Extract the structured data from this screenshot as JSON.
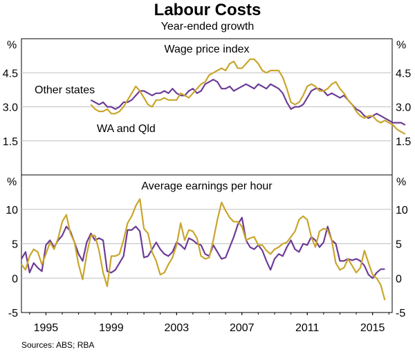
{
  "title": "Labour Costs",
  "subtitle": "Year-ended growth",
  "source": "Sources:   ABS; RBA",
  "colors": {
    "other_states": "#6c3b96",
    "wa_qld": "#c9a52b",
    "grid": "#bfbfbf",
    "axis": "#000000"
  },
  "chart_data": [
    {
      "type": "line",
      "title": "Wage price index",
      "ylabel_left": "%",
      "ylabel_right": "%",
      "ylim": [
        0,
        6
      ],
      "yticks": [
        1.5,
        3.0,
        4.5
      ],
      "ytick_labels": [
        "1.5",
        "3.0",
        "4.5"
      ],
      "xlim": [
        1993.5,
        2016.2
      ],
      "series_labels": {
        "other_states": "Other states",
        "wa_qld": "WA and Qld"
      },
      "series": [
        {
          "name": "Other states",
          "key": "other_states",
          "x_start": 1997.75,
          "step": 0.25,
          "values": [
            3.3,
            3.2,
            3.1,
            3.2,
            3.0,
            3.0,
            2.9,
            3.0,
            3.2,
            3.2,
            3.3,
            3.5,
            3.7,
            3.7,
            3.6,
            3.5,
            3.6,
            3.6,
            3.7,
            3.6,
            3.8,
            3.6,
            3.5,
            3.5,
            3.7,
            3.8,
            3.6,
            3.7,
            4.0,
            4.1,
            4.2,
            4.1,
            3.8,
            3.8,
            3.9,
            3.7,
            3.8,
            3.9,
            4.0,
            3.9,
            3.8,
            4.0,
            3.9,
            3.8,
            4.0,
            3.9,
            3.8,
            3.6,
            3.2,
            2.9,
            3.0,
            3.0,
            3.1,
            3.4,
            3.7,
            3.8,
            3.8,
            3.7,
            3.5,
            3.6,
            3.5,
            3.4,
            3.5,
            3.3,
            3.1,
            2.9,
            2.8,
            2.6,
            2.5,
            2.6,
            2.7,
            2.6,
            2.5,
            2.4,
            2.3,
            2.3,
            2.3,
            2.2
          ]
        },
        {
          "name": "WA and Qld",
          "key": "wa_qld",
          "x_start": 1997.75,
          "step": 0.25,
          "values": [
            3.1,
            2.9,
            2.8,
            2.8,
            2.9,
            2.7,
            2.7,
            2.8,
            3.0,
            3.3,
            3.6,
            3.9,
            3.7,
            3.4,
            3.1,
            3.0,
            3.3,
            3.3,
            3.4,
            3.3,
            3.3,
            3.3,
            3.6,
            3.5,
            3.4,
            3.6,
            3.8,
            4.0,
            4.1,
            4.4,
            4.5,
            4.6,
            4.7,
            4.6,
            4.9,
            5.0,
            4.7,
            4.7,
            4.9,
            5.1,
            5.1,
            4.9,
            4.6,
            4.5,
            4.6,
            4.6,
            4.6,
            4.3,
            3.8,
            3.2,
            3.1,
            3.2,
            3.5,
            3.9,
            4.0,
            3.9,
            3.7,
            3.7,
            3.8,
            4.0,
            4.1,
            3.8,
            3.6,
            3.3,
            3.1,
            2.8,
            2.6,
            2.5,
            2.6,
            2.6,
            2.4,
            2.3,
            2.4,
            2.3,
            2.2,
            2.0,
            1.9,
            1.8
          ]
        }
      ]
    },
    {
      "type": "line",
      "title": "Average earnings per hour",
      "ylabel_left": "%",
      "ylabel_right": "%",
      "ylim": [
        -5,
        15
      ],
      "yticks": [
        -5,
        0,
        5,
        10
      ],
      "ytick_labels": [
        "-5",
        "0",
        "5",
        "10"
      ],
      "xlim": [
        1993.5,
        2016.2
      ],
      "xticks": [
        1995,
        1999,
        2003,
        2007,
        2011,
        2015
      ],
      "xtick_labels": [
        "1995",
        "1999",
        "2003",
        "2007",
        "2011",
        "2015"
      ],
      "series": [
        {
          "name": "Other states",
          "key": "other_states",
          "x_start": 1993.5,
          "step": 0.25,
          "values": [
            2.8,
            3.8,
            0.8,
            2.2,
            1.5,
            1.0,
            4.8,
            5.5,
            4.5,
            5.5,
            6.2,
            7.5,
            6.8,
            5.2,
            3.5,
            2.5,
            5.2,
            6.5,
            5.5,
            5.8,
            5.5,
            1.0,
            0.8,
            1.2,
            2.2,
            3.2,
            7.0,
            7.0,
            7.5,
            6.8,
            3.0,
            3.2,
            4.2,
            5.2,
            4.2,
            3.5,
            3.2,
            3.8,
            5.2,
            4.8,
            4.2,
            5.8,
            5.5,
            5.0,
            4.8,
            3.5,
            3.2,
            4.8,
            3.8,
            2.8,
            3.0,
            4.5,
            6.0,
            7.8,
            8.8,
            5.5,
            4.5,
            4.2,
            4.8,
            4.0,
            2.5,
            1.2,
            2.8,
            3.5,
            3.2,
            4.5,
            5.5,
            4.2,
            3.8,
            5.0,
            4.8,
            6.0,
            5.5,
            4.5,
            5.2,
            7.5,
            5.5,
            5.0,
            2.5,
            2.5,
            2.8,
            2.6,
            2.8,
            2.5,
            1.8,
            0.5,
            0.0,
            0.8,
            1.3,
            1.3
          ]
        },
        {
          "name": "WA and Qld",
          "key": "wa_qld",
          "x_start": 1993.5,
          "step": 0.25,
          "values": [
            2.0,
            1.2,
            3.2,
            4.2,
            3.8,
            2.0,
            3.5,
            5.2,
            4.2,
            5.8,
            8.2,
            9.2,
            6.5,
            5.2,
            2.0,
            -0.2,
            3.5,
            6.2,
            6.2,
            4.0,
            0.8,
            -1.2,
            3.2,
            3.2,
            3.5,
            5.5,
            8.0,
            9.0,
            10.5,
            11.5,
            7.2,
            6.5,
            3.8,
            2.5,
            0.5,
            0.8,
            2.0,
            3.0,
            4.8,
            8.0,
            5.5,
            7.0,
            6.8,
            5.8,
            3.2,
            2.8,
            3.0,
            5.5,
            8.5,
            11.0,
            9.8,
            8.8,
            8.2,
            8.2,
            7.5,
            5.5,
            5.8,
            6.0,
            4.8,
            4.8,
            4.0,
            3.5,
            4.2,
            4.5,
            5.0,
            5.2,
            6.0,
            6.8,
            8.5,
            9.0,
            8.5,
            6.0,
            4.5,
            6.8,
            7.2,
            7.0,
            5.5,
            2.2,
            1.2,
            1.5,
            2.8,
            1.8,
            0.8,
            1.5,
            4.0,
            2.2,
            0.5,
            0.0,
            -1.0,
            -3.2
          ]
        }
      ]
    }
  ]
}
